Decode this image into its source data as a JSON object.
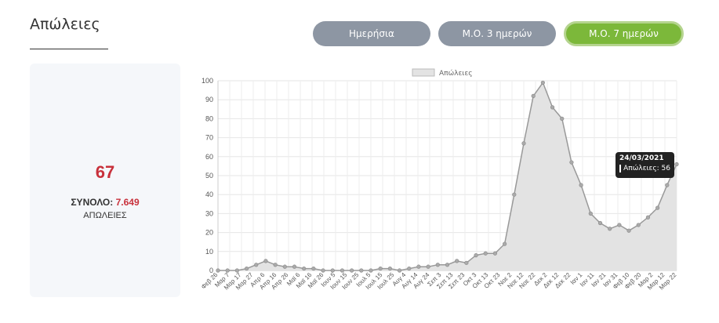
{
  "header": {
    "title": "Απώλειες"
  },
  "buttons": {
    "daily": "Ημερήσια",
    "ma3": "Μ.Ο. 3 ημερών",
    "ma7": "Μ.Ο. 7 ημερών"
  },
  "summary": {
    "today_value": "67",
    "total_label": "ΣΥΝΟΛΟ:",
    "total_value": "7.649",
    "unit_label": "ΑΠΩΛΕΙΕΣ"
  },
  "tooltip": {
    "date": "24/03/2021",
    "series_label": "Απώλειες:",
    "value": "56"
  },
  "colors": {
    "active_button": "#7cb83a",
    "inactive_button": "#8d96a3",
    "accent_red": "#c8313b",
    "series_fill": "#e3e3e3",
    "series_line": "#999999"
  },
  "chart_data": {
    "type": "area",
    "legend": "Απώλειες",
    "legend_position": "top",
    "grid": true,
    "ylim": [
      0,
      100
    ],
    "yticks": [
      0,
      10,
      20,
      30,
      40,
      50,
      60,
      70,
      80,
      90,
      100
    ],
    "xticks": [
      "Φεβ 26",
      "Μαρ 7",
      "Μαρ 17",
      "Μαρ 27",
      "Απρ 6",
      "Απρ 16",
      "Απρ 26",
      "Μαϊ 6",
      "Μαϊ 16",
      "Μαϊ 26",
      "Ιουν 5",
      "Ιουν 15",
      "Ιουν 25",
      "Ιουλ 5",
      "Ιουλ 15",
      "Ιουλ 25",
      "Αυγ 4",
      "Αυγ 14",
      "Αυγ 24",
      "Σεπ 3",
      "Σεπ 13",
      "Σεπ 23",
      "Οκτ 3",
      "Οκτ 13",
      "Οκτ 23",
      "Νοε 2",
      "Νοε 12",
      "Νοε 22",
      "Δεκ 2",
      "Δεκ 12",
      "Δεκ 22",
      "Ιαν 1",
      "Ιαν 11",
      "Ιαν 21",
      "Ιαν 31",
      "Φεβ 10",
      "Φεβ 20",
      "Μαρ 2",
      "Μαρ 12",
      "Μαρ 22"
    ],
    "series": [
      {
        "name": "Απώλειες",
        "values": [
          0,
          0,
          0,
          1,
          3,
          5,
          3,
          2,
          2,
          1,
          1,
          0,
          0,
          0,
          0,
          0,
          0,
          1,
          1,
          0,
          1,
          2,
          2,
          3,
          3,
          5,
          4,
          8,
          9,
          9,
          14,
          40,
          67,
          92,
          99,
          86,
          80,
          57,
          45,
          30,
          25,
          22,
          24,
          21,
          24,
          28,
          33,
          45,
          56
        ]
      }
    ]
  }
}
